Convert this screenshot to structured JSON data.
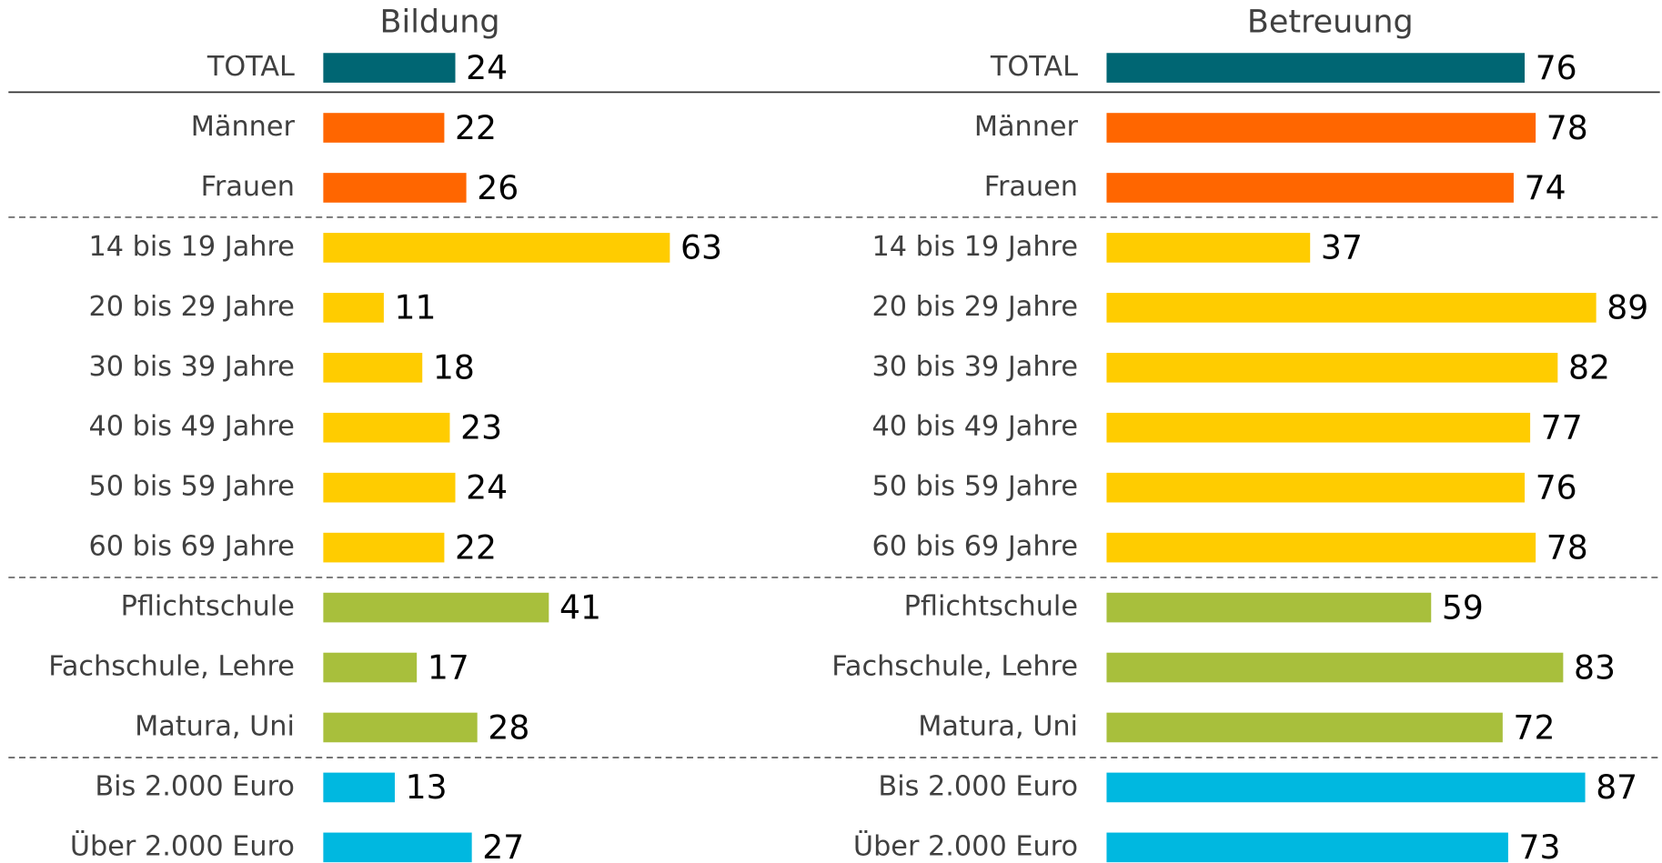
{
  "chart_data": [
    {
      "type": "bar",
      "orientation": "horizontal",
      "title": "Bildung",
      "categories": [
        "TOTAL",
        "Männer",
        "Frauen",
        "14 bis 19 Jahre",
        "20 bis 29 Jahre",
        "30 bis 39 Jahre",
        "40 bis 49 Jahre",
        "50 bis 59 Jahre",
        "60 bis 69 Jahre",
        "Pflichtschule",
        "Fachschule, Lehre",
        "Matura, Uni",
        "Bis 2.000 Euro",
        "Über 2.000 Euro"
      ],
      "values": [
        24,
        22,
        26,
        63,
        11,
        18,
        23,
        24,
        22,
        41,
        17,
        28,
        13,
        27
      ],
      "colors": [
        "#006673",
        "#ff6600",
        "#ff6600",
        "#ffcc00",
        "#ffcc00",
        "#ffcc00",
        "#ffcc00",
        "#ffcc00",
        "#ffcc00",
        "#a8bf3c",
        "#a8bf3c",
        "#a8bf3c",
        "#00b8e0",
        "#00b8e0"
      ]
    },
    {
      "type": "bar",
      "orientation": "horizontal",
      "title": "Betreuung",
      "categories": [
        "TOTAL",
        "Männer",
        "Frauen",
        "14 bis 19 Jahre",
        "20 bis 29 Jahre",
        "30 bis 39 Jahre",
        "40 bis 49 Jahre",
        "50 bis 59 Jahre",
        "60 bis 69 Jahre",
        "Pflichtschule",
        "Fachschule, Lehre",
        "Matura, Uni",
        "Bis 2.000 Euro",
        "Über 2.000 Euro"
      ],
      "values": [
        76,
        78,
        74,
        37,
        89,
        82,
        77,
        76,
        78,
        59,
        83,
        72,
        87,
        73
      ],
      "colors": [
        "#006673",
        "#ff6600",
        "#ff6600",
        "#ffcc00",
        "#ffcc00",
        "#ffcc00",
        "#ffcc00",
        "#ffcc00",
        "#ffcc00",
        "#a8bf3c",
        "#a8bf3c",
        "#a8bf3c",
        "#00b8e0",
        "#00b8e0"
      ]
    }
  ]
}
